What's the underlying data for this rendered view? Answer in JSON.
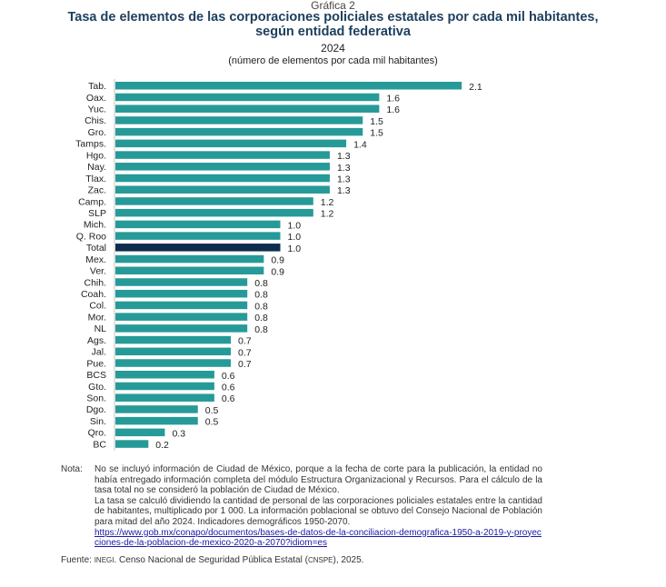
{
  "header": {
    "graph_number": "Gráfica 2",
    "title_line1": "Tasa de elementos de las corporaciones policiales estatales por cada mil habitantes,",
    "title_line2": "según entidad federativa",
    "year": "2024",
    "unit": "(número de elementos por cada mil habitantes)"
  },
  "colors": {
    "bar": "#269a98",
    "highlight_bar": "#0d2d4e",
    "axis": "#d9d9d9"
  },
  "chart_data": {
    "type": "bar",
    "orientation": "horizontal",
    "title": "Tasa de elementos de las corporaciones policiales estatales por cada mil habitantes, según entidad federativa",
    "subtitle": "2024 (número de elementos por cada mil habitantes)",
    "xlabel": "",
    "ylabel": "",
    "xlim": [
      0,
      2.1
    ],
    "grid": false,
    "legend": "none",
    "highlight_category": "Total",
    "categories": [
      "Tab.",
      "Oax.",
      "Yuc.",
      "Chis.",
      "Gro.",
      "Tamps.",
      "Hgo.",
      "Nay.",
      "Tlax.",
      "Zac.",
      "Camp.",
      "SLP",
      "Mich.",
      "Q. Roo",
      "Total",
      "Mex.",
      "Ver.",
      "Chih.",
      "Coah.",
      "Col.",
      "Mor.",
      "NL",
      "Ags.",
      "Jal.",
      "Pue.",
      "BCS",
      "Gto.",
      "Son.",
      "Dgo.",
      "Sin.",
      "Qro.",
      "BC"
    ],
    "values": [
      2.1,
      1.6,
      1.6,
      1.5,
      1.5,
      1.4,
      1.3,
      1.3,
      1.3,
      1.3,
      1.2,
      1.2,
      1.0,
      1.0,
      1.0,
      0.9,
      0.9,
      0.8,
      0.8,
      0.8,
      0.8,
      0.8,
      0.7,
      0.7,
      0.7,
      0.6,
      0.6,
      0.6,
      0.5,
      0.5,
      0.3,
      0.2
    ],
    "value_labels": [
      "2.1",
      "1.6",
      "1.6",
      "1.5",
      "1.5",
      "1.4",
      "1.3",
      "1.3",
      "1.3",
      "1.3",
      "1.2",
      "1.2",
      "1.0",
      "1.0",
      "1.0",
      "0.9",
      "0.9",
      "0.8",
      "0.8",
      "0.8",
      "0.8",
      "0.8",
      "0.7",
      "0.7",
      "0.7",
      "0.6",
      "0.6",
      "0.6",
      "0.5",
      "0.5",
      "0.3",
      "0.2"
    ]
  },
  "notes": {
    "label": "Nota:",
    "paragraph1": "No se incluyó información de Ciudad de México, porque a la fecha de corte para la publicación, la entidad no había entregado información completa del módulo Estructura Organizacional y Recursos. Para el cálculo de la tasa total no se consideró la población de Ciudad de México.",
    "paragraph2": "La tasa se calculó dividiendo la cantidad de personal de las corporaciones policiales estatales entre la cantidad de habitantes, multiplicado por 1 000. La información poblacional se obtuvo del Consejo Nacional de Población para mitad del año 2024. Indicadores demográficos 1950-2070.",
    "link": "https://www.gob.mx/conapo/documentos/bases-de-datos-de-la-conciliacion-demografica-1950-a-2019-y-proyecciones-de-la-poblacion-de-mexico-2020-a-2070?idiom=es"
  },
  "source": {
    "label": "Fuente:",
    "org": "INEGI",
    "text_after_org": ". Censo Nacional de Seguridad Pública Estatal (",
    "acronym": "CNSPE",
    "text_end": "), 2025."
  }
}
